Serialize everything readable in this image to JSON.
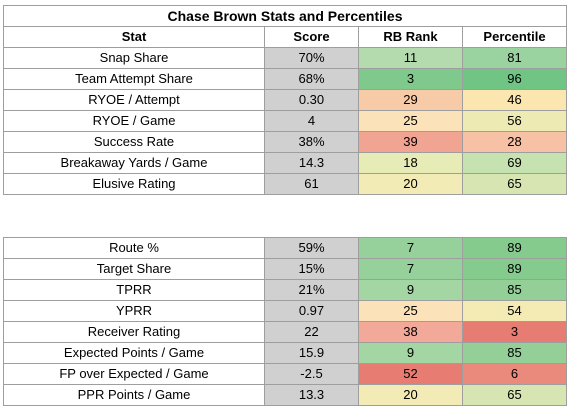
{
  "title": "Chase Brown Stats and Percentiles",
  "headers": {
    "stat": "Stat",
    "score": "Score",
    "rank": "RB Rank",
    "percentile": "Percentile"
  },
  "sections": [
    {
      "rows": [
        {
          "stat": "Snap Share",
          "score": "70%",
          "rank": "11",
          "percentile": "81",
          "rank_color": "#b4dbad",
          "pct_color": "#9bd3a0"
        },
        {
          "stat": "Team Attempt Share",
          "score": "68%",
          "rank": "3",
          "percentile": "96",
          "rank_color": "#7fc98c",
          "pct_color": "#70c584"
        },
        {
          "stat": "RYOE / Attempt",
          "score": "0.30",
          "rank": "29",
          "percentile": "46",
          "rank_color": "#f8cba8",
          "pct_color": "#fbe6b0"
        },
        {
          "stat": "RYOE / Game",
          "score": "4",
          "rank": "25",
          "percentile": "56",
          "rank_color": "#fbe2b8",
          "pct_color": "#eeeab4"
        },
        {
          "stat": "Success Rate",
          "score": "38%",
          "rank": "39",
          "percentile": "28",
          "rank_color": "#f2a493",
          "pct_color": "#f6c1a5"
        },
        {
          "stat": "Breakaway Yards / Game",
          "score": "14.3",
          "rank": "18",
          "percentile": "69",
          "rank_color": "#e7ebb6",
          "pct_color": "#c6e2b0"
        },
        {
          "stat": "Elusive Rating",
          "score": "61",
          "rank": "20",
          "percentile": "65",
          "rank_color": "#f2ebb5",
          "pct_color": "#d7e5b2"
        }
      ]
    },
    {
      "rows": [
        {
          "stat": "Route %",
          "score": "59%",
          "rank": "7",
          "percentile": "89",
          "rank_color": "#96d19c",
          "pct_color": "#85cb8e"
        },
        {
          "stat": "Target Share",
          "score": "15%",
          "rank": "7",
          "percentile": "89",
          "rank_color": "#96d19c",
          "pct_color": "#85cb8e"
        },
        {
          "stat": "TPRR",
          "score": "21%",
          "rank": "9",
          "percentile": "85",
          "rank_color": "#a3d6a2",
          "pct_color": "#95cf98"
        },
        {
          "stat": "YPRR",
          "score": "0.97",
          "rank": "25",
          "percentile": "54",
          "rank_color": "#fbe2b8",
          "pct_color": "#f4ebb4"
        },
        {
          "stat": "Receiver Rating",
          "score": "22",
          "rank": "38",
          "percentile": "3",
          "rank_color": "#f2a99a",
          "pct_color": "#e67c72"
        }
      ]
    },
    {
      "rows": [
        {
          "stat": "Expected Points / Game",
          "score": "15.9",
          "rank": "9",
          "percentile": "85",
          "rank_color": "#a3d6a2",
          "pct_color": "#95cf98"
        },
        {
          "stat": "FP over Expected / Game",
          "score": "-2.5",
          "rank": "52",
          "percentile": "6",
          "rank_color": "#e67c72",
          "pct_color": "#e98a7c"
        },
        {
          "stat": "PPR Points / Game",
          "score": "13.3",
          "rank": "20",
          "percentile": "65",
          "rank_color": "#f2ebb5",
          "pct_color": "#d7e5b2"
        }
      ]
    }
  ]
}
